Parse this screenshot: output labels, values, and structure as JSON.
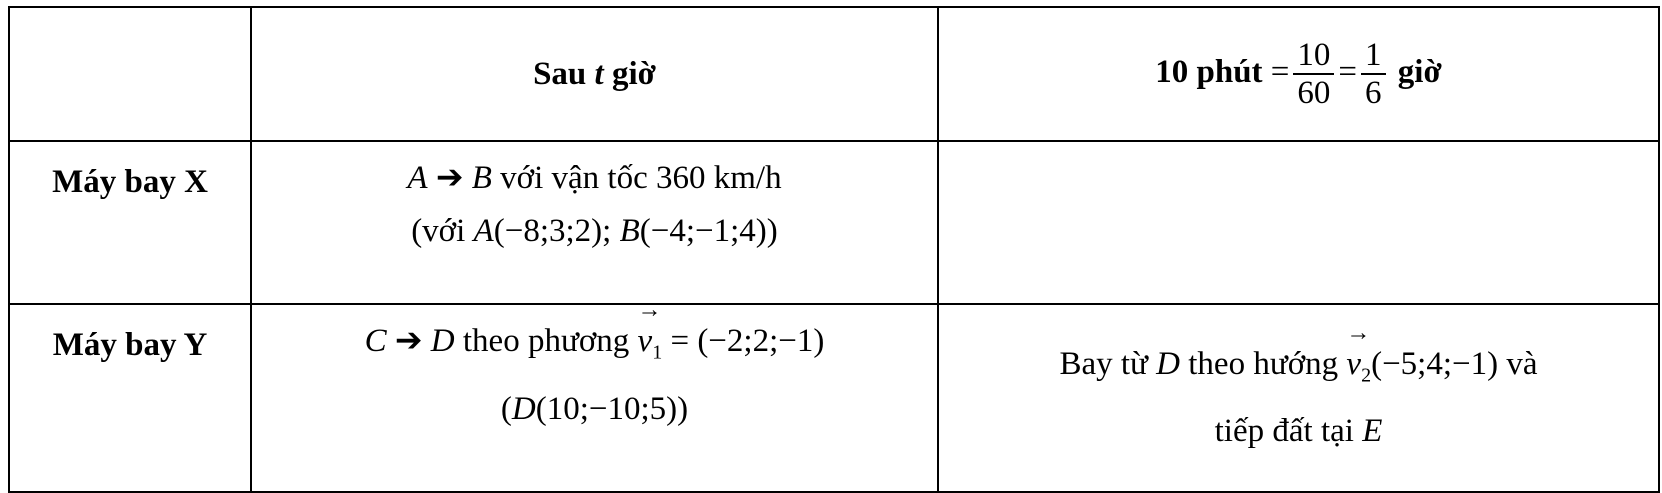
{
  "header": {
    "col1": "",
    "col2_prefix": "Sau ",
    "col2_var": "t",
    "col2_suffix": " giờ",
    "col3_prefix": "10 phút",
    "col3_eq": "=",
    "frac1_num": "10",
    "frac1_den": "60",
    "frac2_num": "1",
    "frac2_den": "6",
    "col3_suffix": "giờ"
  },
  "rows": [
    {
      "label": "Máy bay X",
      "c2_line1_a": "A",
      "c2_line1_arrow": "➔",
      "c2_line1_b": "B",
      "c2_line1_rest": " với vận tốc 360 km/h",
      "c2_line2_open": "(với ",
      "c2_line2_A": "A",
      "c2_line2_Acoords": "(−8;3;2)",
      "c2_line2_sep": "; ",
      "c2_line2_B": "B",
      "c2_line2_Bcoords": "(−4;−1;4)",
      "c2_line2_close": ")",
      "c3": ""
    },
    {
      "label": "Máy bay Y",
      "c2_line1_a": "C",
      "c2_line1_arrow": "➔",
      "c2_line1_b": "D",
      "c2_line1_rest": " theo phương ",
      "c2_vec": "v",
      "c2_vec_sub": "1",
      "c2_vec_val": " = (−2;2;−1)",
      "c2_line2_open": "(",
      "c2_line2_D": "D",
      "c2_line2_Dcoords": "(10;−10;5)",
      "c2_line2_close": ")",
      "c3_line1_a": "Bay từ ",
      "c3_line1_D": "D",
      "c3_line1_b": " theo hướng ",
      "c3_vec": "v",
      "c3_vec_sub": "2",
      "c3_vec_val": "(−5;4;−1)",
      "c3_line1_c": " và",
      "c3_line2_a": "tiếp đất tại ",
      "c3_line2_E": "E"
    }
  ]
}
